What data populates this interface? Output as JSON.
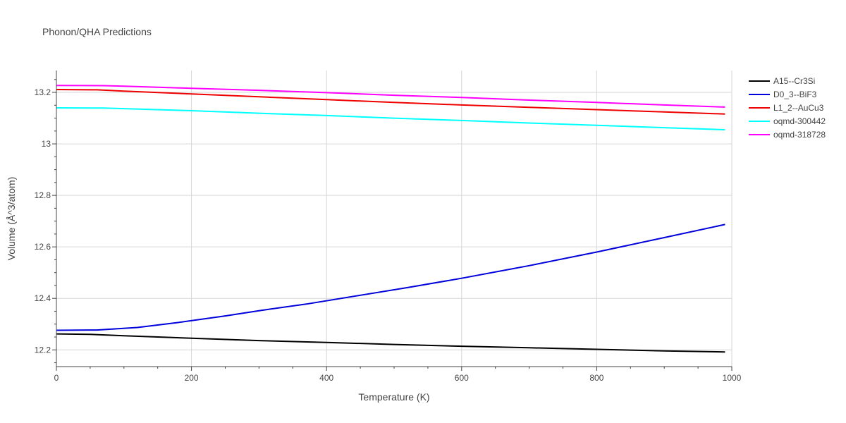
{
  "chart_data": {
    "type": "line",
    "title": "Phonon/QHA Predictions",
    "xlabel": "Temperature (K)",
    "ylabel": "Volume (Å^3/atom)",
    "xlim": [
      0,
      1000
    ],
    "ylim": [
      12.135,
      13.285
    ],
    "x_ticks": [
      0,
      200,
      400,
      600,
      800,
      1000
    ],
    "y_ticks": [
      12.2,
      12.4,
      12.6,
      12.8,
      13,
      13.2
    ],
    "x_tick_labels": [
      "0",
      "200",
      "400",
      "600",
      "800",
      "1000"
    ],
    "y_tick_labels": [
      "12.2",
      "12.4",
      "12.6",
      "12.8",
      "13",
      "13.2"
    ],
    "grid": true,
    "legend_position": "top-right",
    "series": [
      {
        "name": "A15--Cr3Si",
        "color": "#000000",
        "x": [
          0,
          50,
          100,
          200,
          300,
          400,
          500,
          600,
          700,
          800,
          900,
          990
        ],
        "y": [
          12.262,
          12.26,
          12.255,
          12.245,
          12.236,
          12.229,
          12.221,
          12.214,
          12.208,
          12.202,
          12.196,
          12.192
        ]
      },
      {
        "name": "D0_3--BiF3",
        "color": "#0000dd",
        "x": [
          0,
          60,
          120,
          180,
          250,
          300,
          370,
          450,
          520,
          600,
          700,
          800,
          900,
          990
        ],
        "y": [
          12.276,
          12.277,
          12.287,
          12.306,
          12.332,
          12.352,
          12.378,
          12.412,
          12.442,
          12.478,
          12.527,
          12.58,
          12.636,
          12.687
        ]
      },
      {
        "name": "L1_2--AuCu3",
        "color": "#ee0000",
        "x": [
          0,
          60,
          100,
          200,
          300,
          400,
          500,
          600,
          700,
          800,
          900,
          990
        ],
        "y": [
          13.211,
          13.21,
          13.205,
          13.194,
          13.183,
          13.172,
          13.161,
          13.151,
          13.142,
          13.133,
          13.124,
          13.116
        ]
      },
      {
        "name": "oqmd-300442",
        "color": "#00ffff",
        "x": [
          0,
          70,
          100,
          200,
          300,
          400,
          500,
          600,
          700,
          800,
          900,
          990
        ],
        "y": [
          13.14,
          13.139,
          13.137,
          13.129,
          13.119,
          13.11,
          13.1,
          13.091,
          13.081,
          13.072,
          13.063,
          13.055
        ]
      },
      {
        "name": "oqmd-318728",
        "color": "#ff00ff",
        "x": [
          0,
          70,
          100,
          200,
          300,
          400,
          500,
          600,
          700,
          800,
          900,
          990
        ],
        "y": [
          13.227,
          13.226,
          13.224,
          13.216,
          13.208,
          13.199,
          13.189,
          13.18,
          13.17,
          13.161,
          13.151,
          13.143
        ]
      }
    ]
  }
}
